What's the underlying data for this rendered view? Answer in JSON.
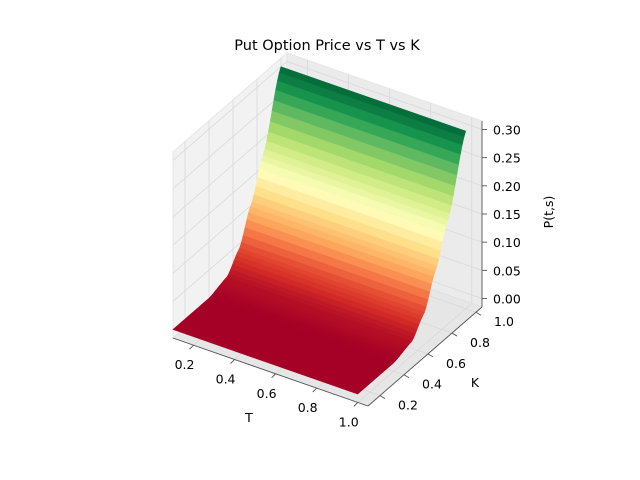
{
  "chart_data": {
    "type": "surface",
    "title": "Put Option Price vs T vs K",
    "xlabel": "T",
    "ylabel": "K",
    "zlabel": "P(t,s)",
    "x_ticks": [
      "0.2",
      "0.4",
      "0.6",
      "0.8",
      "1.0"
    ],
    "y_ticks": [
      "0.2",
      "0.4",
      "0.6",
      "0.8",
      "1.0"
    ],
    "z_ticks": [
      "0.00",
      "0.05",
      "0.10",
      "0.15",
      "0.20",
      "0.25",
      "0.30"
    ],
    "xlim": [
      0.1,
      1.05
    ],
    "ylim": [
      0.1,
      1.05
    ],
    "zlim": [
      -0.015,
      0.315
    ],
    "grid": true,
    "colormap": "RdYlGn",
    "colormap_colors": [
      "#a50026",
      "#d73027",
      "#f46d43",
      "#fdae61",
      "#fee08b",
      "#ffffbf",
      "#d9ef8b",
      "#a6d96a",
      "#66bd63",
      "#1a9850",
      "#006837"
    ],
    "pane_color": "#f2f2f2",
    "grid_color": "#d9d9d9",
    "T_range": [
      0.1,
      1.0
    ],
    "K_range": [
      0.1,
      1.0
    ],
    "price_at_corners": {
      "T0.1_K0.1": 0.0,
      "T1.0_K0.1": 0.0,
      "T0.1_K1.0": 0.3,
      "T1.0_K1.0": 0.3
    },
    "approx_price_by_K": {
      "K": [
        0.1,
        0.4,
        0.55,
        0.65,
        0.75,
        0.85,
        1.0
      ],
      "P": [
        0.0,
        0.0,
        0.01,
        0.04,
        0.1,
        0.17,
        0.3
      ]
    }
  }
}
